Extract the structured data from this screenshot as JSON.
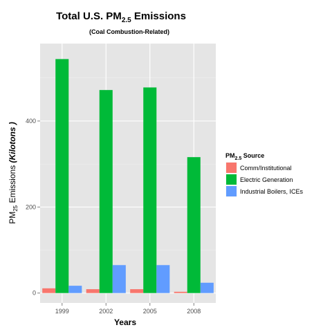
{
  "chart_data": {
    "type": "bar",
    "title_main": "Total U.S. PM",
    "title_sub_script": "2.5",
    "title_tail": " Emissions",
    "subtitle": "(Coal Combustion-Related)",
    "xlabel": "Years",
    "ylabel_main": "PM",
    "ylabel_sub": "25",
    "ylabel_mid": " Emissions  ",
    "ylabel_unit": "(Kilotons )",
    "categories": [
      "1999",
      "2002",
      "2005",
      "2008"
    ],
    "y_ticks": [
      0,
      200,
      400
    ],
    "ylim": [
      -23,
      580
    ],
    "grid": true,
    "legend_position": "right",
    "legend_title_main": "PM",
    "legend_title_sub": "2.5",
    "legend_title_tail": " Source",
    "series": [
      {
        "name": "Comm/Institutional",
        "color": "#f8766d",
        "values": [
          11,
          9,
          9,
          3
        ]
      },
      {
        "name": "Electric Generation",
        "color": "#00ba38",
        "values": [
          544,
          472,
          478,
          316
        ]
      },
      {
        "name": "Industrial Boilers, ICEs",
        "color": "#619cff",
        "values": [
          17,
          65,
          65,
          24
        ]
      }
    ]
  }
}
